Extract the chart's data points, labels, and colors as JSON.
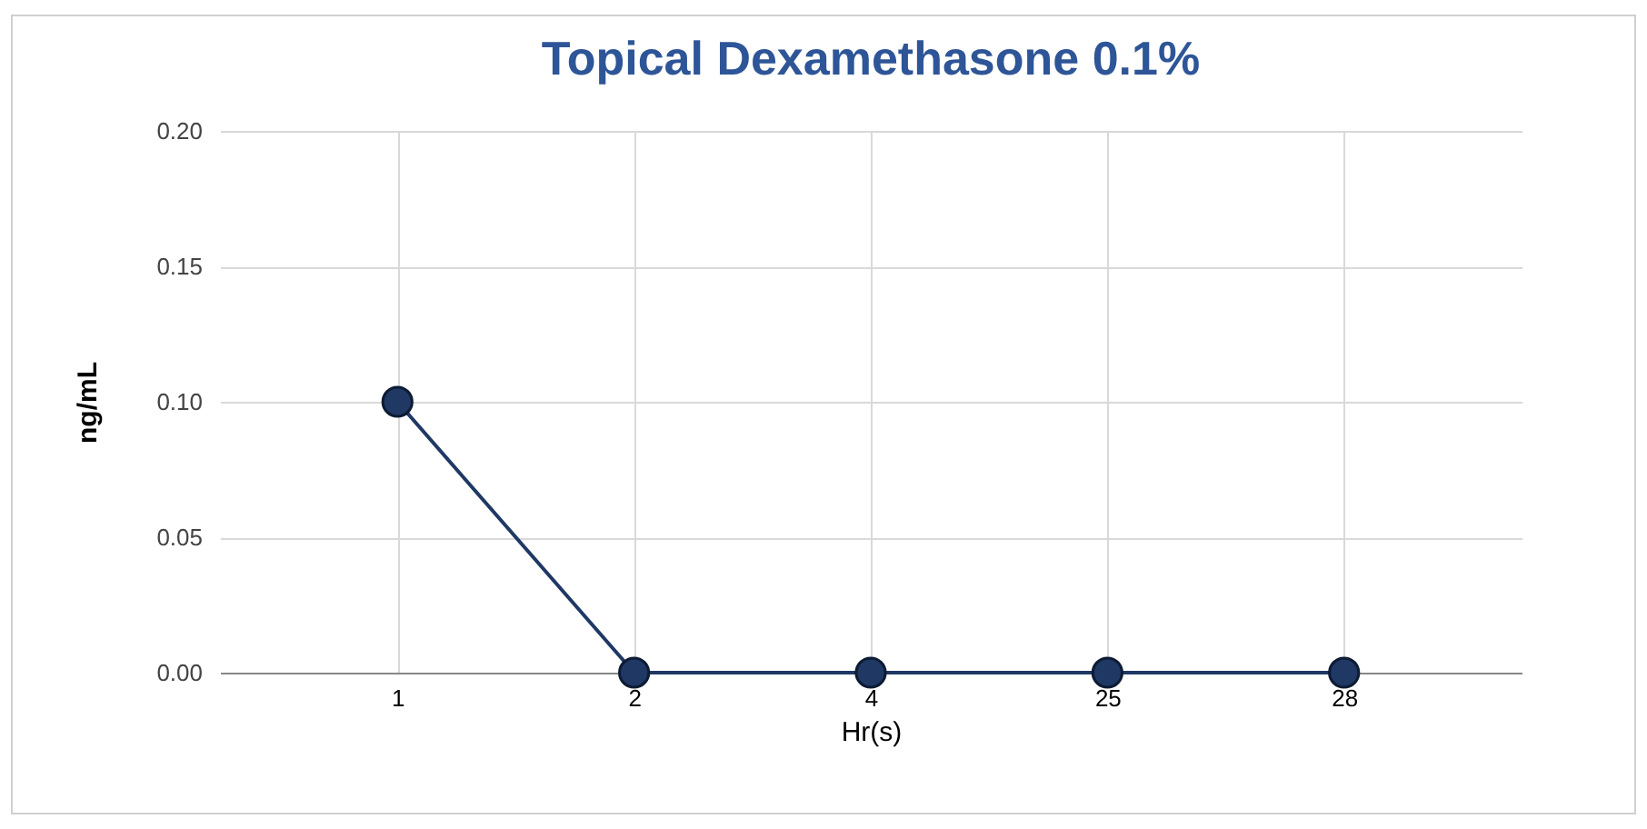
{
  "chart_data": {
    "type": "line",
    "title": "Topical Dexamethasone 0.1%",
    "xlabel": "Hr(s)",
    "ylabel": "ng/mL",
    "categories": [
      "1",
      "2",
      "4",
      "25",
      "28"
    ],
    "series": [
      {
        "color": "#1f3864",
        "values": [
          0.1,
          0,
          0,
          0,
          0
        ]
      }
    ],
    "ylim": [
      0,
      0.2
    ],
    "yticks": [
      {
        "value": 0,
        "label": "0.00"
      },
      {
        "value": 0.05,
        "label": "0.05"
      },
      {
        "value": 0.1,
        "label": "0.10"
      },
      {
        "value": 0.15,
        "label": "0.15"
      },
      {
        "value": 0.2,
        "label": "0.20"
      }
    ],
    "grid": true,
    "marker": "circle",
    "line_style": "solid",
    "legend": false
  }
}
